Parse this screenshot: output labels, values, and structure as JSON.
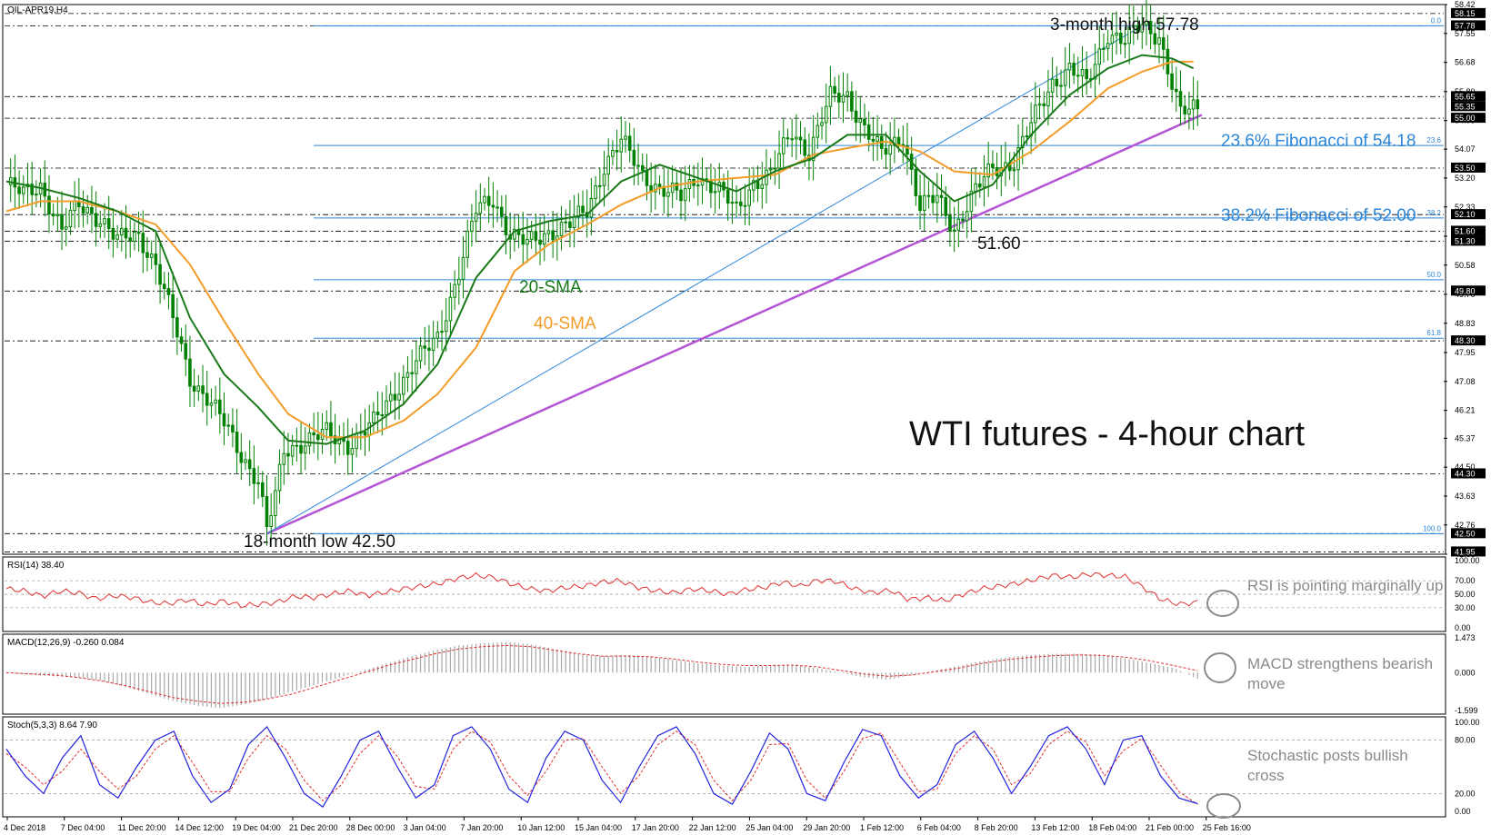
{
  "window": {
    "symbol": "OIL-APR19,H4",
    "main_title": "WTI futures - 4-hour chart"
  },
  "colors": {
    "candle": "#008000",
    "sma20": "#1a7a1a",
    "sma40": "#f39c2a",
    "fib": "#2b86d9",
    "trend": "#b455d6",
    "rsi": "#e03030",
    "macd_hist": "#a8a8a8",
    "macd_signal": "#e03030",
    "stoch_k": "#2222dd",
    "stoch_d": "#e03030",
    "grid": "#000000",
    "annot_gray": "#8a8a8a"
  },
  "annotations": {
    "high_label": "3-month high 57.78",
    "low_label": "18-month low 42.50",
    "swing_low_label": "51.60",
    "fib236_label": "23.6% Fibonacci of 54.18",
    "fib382_label": "38.2% Fibonacci of 52.00",
    "sma20_label": "20-SMA",
    "sma40_label": "40-SMA",
    "rsi_note": "RSI is pointing marginally up",
    "macd_note": "MACD strengthens bearish move",
    "stoch_note": "Stochastic posts bullish cross"
  },
  "indicators": {
    "rsi_header": "RSI(14) 38.40",
    "macd_header": "MACD(12,26,9) -0.260 0.084",
    "stoch_header": "Stoch(5,3,3) 8.64 7.90"
  },
  "chart_data": [
    {
      "type": "candlestick",
      "title": "WTI futures - 4-hour chart",
      "x_tick_labels": [
        "4 Dec 2018",
        "7 Dec 04:00",
        "11 Dec 20:00",
        "14 Dec 12:00",
        "19 Dec 04:00",
        "21 Dec 20:00",
        "28 Dec 00:00",
        "3 Jan 04:00",
        "7 Jan 20:00",
        "10 Jan 12:00",
        "15 Jan 04:00",
        "17 Jan 20:00",
        "22 Jan 12:00",
        "25 Jan 04:00",
        "29 Jan 20:00",
        "1 Feb 12:00",
        "6 Feb 04:00",
        "8 Feb 20:00",
        "13 Feb 12:00",
        "18 Feb 04:00",
        "21 Feb 00:00",
        "25 Feb 16:00"
      ],
      "y_tick_labels": [
        58.42,
        57.55,
        56.68,
        55.8,
        54.93,
        54.07,
        53.2,
        52.33,
        51.45,
        50.58,
        49.7,
        48.83,
        47.95,
        47.08,
        46.21,
        45.37,
        44.5,
        43.63,
        42.76,
        41.88
      ],
      "ylim": [
        41.88,
        58.42
      ],
      "price_line_labels": [
        58.15,
        57.78,
        55.65,
        55.35,
        55.0,
        53.5,
        52.1,
        51.6,
        51.3,
        49.8,
        48.3,
        44.3,
        42.5,
        41.95
      ],
      "dashed_levels": [
        58.15,
        57.78,
        55.65,
        55.0,
        53.5,
        52.1,
        51.6,
        51.3,
        49.8,
        48.3,
        44.3,
        42.5,
        41.95
      ],
      "fibonacci_levels": [
        {
          "label": "0.0",
          "price": 57.78
        },
        {
          "label": "23.6",
          "price": 54.18
        },
        {
          "label": "38.2",
          "price": 52.0
        },
        {
          "label": "50.0",
          "price": 50.14
        },
        {
          "label": "61.8",
          "price": 48.38
        },
        {
          "label": "100.0",
          "price": 42.5
        }
      ],
      "close_path": [
        [
          0,
          53.0
        ],
        [
          4,
          52.7
        ],
        [
          8,
          53.0
        ],
        [
          13,
          51.6
        ],
        [
          17,
          52.4
        ],
        [
          22,
          52.0
        ],
        [
          26,
          51.3
        ],
        [
          31,
          51.5
        ],
        [
          35,
          50.6
        ],
        [
          40,
          48.5
        ],
        [
          43,
          47.2
        ],
        [
          47,
          46.6
        ],
        [
          51,
          45.8
        ],
        [
          55,
          44.9
        ],
        [
          59,
          44.1
        ],
        [
          61,
          42.6
        ],
        [
          63,
          43.6
        ],
        [
          65,
          45.0
        ],
        [
          70,
          45.3
        ],
        [
          75,
          45.5
        ],
        [
          80,
          45.2
        ],
        [
          86,
          45.8
        ],
        [
          91,
          46.8
        ],
        [
          95,
          47.5
        ],
        [
          101,
          48.4
        ],
        [
          106,
          50.4
        ],
        [
          110,
          52.2
        ],
        [
          114,
          52.6
        ],
        [
          118,
          51.5
        ],
        [
          122,
          51.2
        ],
        [
          127,
          51.6
        ],
        [
          132,
          51.8
        ],
        [
          136,
          52.2
        ],
        [
          140,
          53.6
        ],
        [
          144,
          54.3
        ],
        [
          149,
          53.3
        ],
        [
          153,
          52.9
        ],
        [
          158,
          52.6
        ],
        [
          162,
          53.3
        ],
        [
          167,
          52.8
        ],
        [
          171,
          52.2
        ],
        [
          175,
          53.1
        ],
        [
          179,
          53.3
        ],
        [
          184,
          54.6
        ],
        [
          188,
          54.0
        ],
        [
          193,
          55.6
        ],
        [
          197,
          55.7
        ],
        [
          201,
          54.7
        ],
        [
          205,
          53.9
        ],
        [
          210,
          54.5
        ],
        [
          214,
          52.3
        ],
        [
          218,
          52.6
        ],
        [
          222,
          51.7
        ],
        [
          227,
          52.8
        ],
        [
          231,
          53.5
        ],
        [
          236,
          53.7
        ],
        [
          240,
          54.8
        ],
        [
          245,
          56.1
        ],
        [
          249,
          56.5
        ],
        [
          253,
          56.0
        ],
        [
          258,
          57.6
        ],
        [
          262,
          57.3
        ],
        [
          266,
          57.8
        ],
        [
          270,
          57.5
        ],
        [
          273,
          56.0
        ],
        [
          275,
          55.1
        ],
        [
          278,
          55.3
        ]
      ],
      "sma20_path": [
        [
          0,
          53.1
        ],
        [
          8,
          52.9
        ],
        [
          17,
          52.6
        ],
        [
          26,
          52.2
        ],
        [
          35,
          51.6
        ],
        [
          43,
          49.0
        ],
        [
          51,
          47.3
        ],
        [
          59,
          46.3
        ],
        [
          66,
          45.3
        ],
        [
          75,
          45.2
        ],
        [
          84,
          45.6
        ],
        [
          93,
          46.4
        ],
        [
          101,
          47.6
        ],
        [
          110,
          50.2
        ],
        [
          119,
          51.6
        ],
        [
          127,
          51.9
        ],
        [
          136,
          52.1
        ],
        [
          144,
          53.1
        ],
        [
          153,
          53.6
        ],
        [
          162,
          53.2
        ],
        [
          171,
          52.8
        ],
        [
          180,
          53.4
        ],
        [
          189,
          53.8
        ],
        [
          197,
          54.5
        ],
        [
          206,
          54.5
        ],
        [
          214,
          53.4
        ],
        [
          222,
          52.5
        ],
        [
          231,
          53.0
        ],
        [
          240,
          54.5
        ],
        [
          249,
          55.7
        ],
        [
          258,
          56.5
        ],
        [
          266,
          56.9
        ],
        [
          273,
          56.8
        ],
        [
          278,
          56.5
        ]
      ],
      "sma40_path": [
        [
          0,
          52.2
        ],
        [
          8,
          52.5
        ],
        [
          17,
          52.5
        ],
        [
          26,
          52.2
        ],
        [
          35,
          51.8
        ],
        [
          43,
          50.6
        ],
        [
          51,
          48.9
        ],
        [
          59,
          47.3
        ],
        [
          66,
          46.1
        ],
        [
          75,
          45.4
        ],
        [
          84,
          45.4
        ],
        [
          93,
          45.9
        ],
        [
          101,
          46.7
        ],
        [
          110,
          48.1
        ],
        [
          119,
          50.4
        ],
        [
          127,
          51.2
        ],
        [
          136,
          51.8
        ],
        [
          144,
          52.4
        ],
        [
          153,
          52.9
        ],
        [
          162,
          53.1
        ],
        [
          171,
          53.2
        ],
        [
          180,
          53.3
        ],
        [
          189,
          53.9
        ],
        [
          197,
          54.1
        ],
        [
          206,
          54.3
        ],
        [
          214,
          54.0
        ],
        [
          222,
          53.4
        ],
        [
          231,
          53.3
        ],
        [
          240,
          54.0
        ],
        [
          249,
          54.9
        ],
        [
          258,
          55.9
        ],
        [
          266,
          56.4
        ],
        [
          273,
          56.7
        ],
        [
          278,
          56.7
        ]
      ],
      "trendlines": [
        {
          "name": "uptrend-support",
          "from": [
            61,
            42.5
          ],
          "to": [
            280,
            55.1
          ]
        },
        {
          "name": "fib-swing",
          "from": [
            61,
            42.5
          ],
          "to": [
            266,
            57.78
          ]
        }
      ]
    },
    {
      "type": "line",
      "name": "RSI(14)",
      "y_tick_labels": [
        100.0,
        70.0,
        50.0,
        30.0,
        0.0
      ],
      "ylim": [
        0,
        100
      ],
      "values": [
        58,
        55,
        47,
        55,
        52,
        43,
        48,
        45,
        38,
        36,
        42,
        34,
        40,
        33,
        35,
        38,
        47,
        45,
        50,
        55,
        48,
        53,
        58,
        62,
        66,
        74,
        78,
        75,
        65,
        58,
        55,
        60,
        62,
        68,
        70,
        60,
        55,
        52,
        58,
        55,
        50,
        57,
        60,
        68,
        62,
        71,
        69,
        58,
        52,
        56,
        42,
        45,
        40,
        50,
        58,
        62,
        66,
        72,
        78,
        75,
        80,
        78,
        76,
        60,
        42,
        35,
        38
      ],
      "last": 38.4
    },
    {
      "type": "bar",
      "name": "MACD(12,26,9)",
      "y_tick_labels": [
        1.473,
        0.0,
        -1.599
      ],
      "ylim": [
        -1.599,
        1.473
      ],
      "histogram": [
        0.0,
        -0.1,
        -0.15,
        -0.2,
        -0.35,
        -0.6,
        -0.9,
        -1.2,
        -1.4,
        -1.5,
        -1.35,
        -1.1,
        -0.8,
        -0.5,
        -0.2,
        0.1,
        0.4,
        0.7,
        0.95,
        1.15,
        1.25,
        1.3,
        1.2,
        1.0,
        0.8,
        0.7,
        0.75,
        0.7,
        0.55,
        0.4,
        0.3,
        0.25,
        0.3,
        0.35,
        0.2,
        0.0,
        -0.2,
        -0.3,
        -0.1,
        0.1,
        0.3,
        0.5,
        0.65,
        0.75,
        0.8,
        0.8,
        0.75,
        0.6,
        0.4,
        0.2,
        -0.26
      ],
      "signal": [
        0.0,
        -0.05,
        -0.1,
        -0.2,
        -0.35,
        -0.55,
        -0.8,
        -1.05,
        -1.2,
        -1.3,
        -1.25,
        -1.1,
        -0.9,
        -0.6,
        -0.3,
        0.0,
        0.3,
        0.55,
        0.8,
        1.0,
        1.1,
        1.15,
        1.1,
        0.95,
        0.8,
        0.7,
        0.7,
        0.68,
        0.58,
        0.45,
        0.35,
        0.3,
        0.3,
        0.32,
        0.25,
        0.1,
        -0.05,
        -0.15,
        -0.1,
        0.05,
        0.2,
        0.4,
        0.55,
        0.65,
        0.72,
        0.75,
        0.73,
        0.65,
        0.5,
        0.3,
        0.084
      ]
    },
    {
      "type": "line",
      "name": "Stoch(5,3,3)",
      "y_tick_labels": [
        100.0,
        80.0,
        20.0,
        0.0
      ],
      "ylim": [
        0,
        100
      ],
      "k_values": [
        70,
        40,
        20,
        60,
        85,
        30,
        15,
        50,
        80,
        90,
        40,
        10,
        25,
        75,
        95,
        60,
        20,
        5,
        40,
        80,
        90,
        50,
        15,
        30,
        85,
        95,
        70,
        25,
        10,
        60,
        90,
        80,
        35,
        10,
        50,
        85,
        95,
        65,
        20,
        8,
        45,
        88,
        70,
        20,
        12,
        55,
        92,
        85,
        40,
        15,
        30,
        75,
        90,
        60,
        20,
        50,
        85,
        95,
        70,
        30,
        80,
        85,
        40,
        15,
        8.64
      ],
      "d_values": [
        65,
        50,
        30,
        45,
        70,
        45,
        25,
        40,
        70,
        85,
        55,
        22,
        22,
        60,
        85,
        70,
        35,
        12,
        30,
        65,
        85,
        62,
        28,
        25,
        70,
        90,
        78,
        40,
        18,
        45,
        80,
        82,
        50,
        20,
        40,
        75,
        90,
        75,
        35,
        12,
        35,
        75,
        76,
        35,
        15,
        45,
        82,
        88,
        55,
        22,
        25,
        65,
        85,
        70,
        30,
        42,
        75,
        90,
        78,
        40,
        68,
        82,
        52,
        22,
        7.9
      ]
    }
  ]
}
